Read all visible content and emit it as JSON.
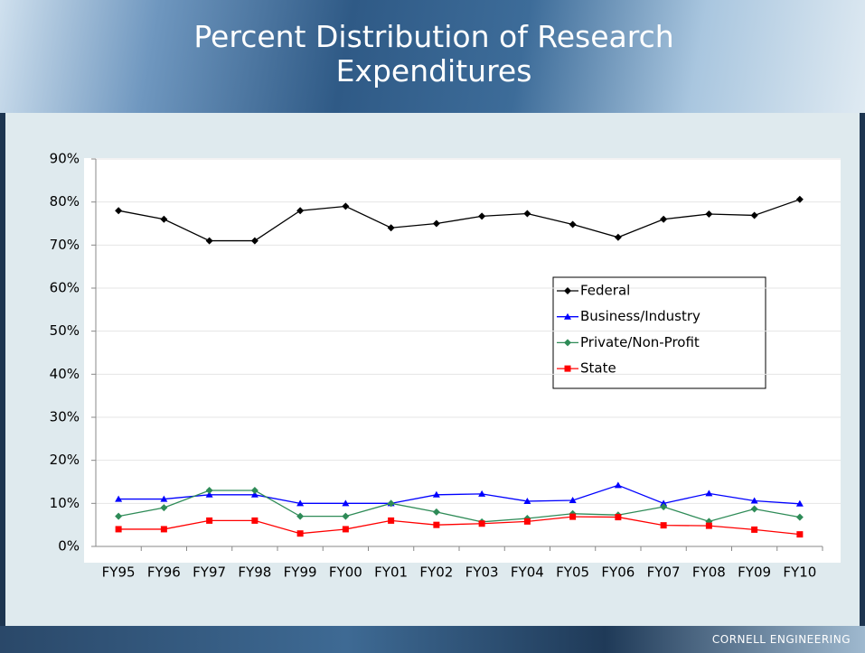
{
  "chart_data": {
    "type": "line",
    "title": "Percent Distribution of Research Expenditures",
    "categories": [
      "FY95",
      "FY96",
      "FY97",
      "FY98",
      "FY99",
      "FY00",
      "FY01",
      "FY02",
      "FY03",
      "FY04",
      "FY05",
      "FY06",
      "FY07",
      "FY08",
      "FY09",
      "FY10"
    ],
    "series": [
      {
        "name": "Federal",
        "color": "#000000",
        "marker": "diamond",
        "values": [
          78,
          76,
          71,
          71,
          78,
          79,
          74,
          75,
          76.7,
          77.3,
          74.8,
          71.8,
          76,
          77.2,
          76.9,
          80.6
        ]
      },
      {
        "name": "Business/Industry",
        "color": "#0000ff",
        "marker": "triangle",
        "values": [
          11,
          11,
          12,
          12,
          10,
          10,
          10,
          12,
          12.2,
          10.5,
          10.7,
          14.2,
          10,
          12.3,
          10.6,
          9.9
        ]
      },
      {
        "name": "Private/Non-Profit",
        "color": "#2e8b57",
        "marker": "diamond",
        "values": [
          7,
          9,
          13,
          13,
          7,
          7,
          10,
          8,
          5.7,
          6.5,
          7.6,
          7.3,
          9.2,
          5.8,
          8.7,
          6.8
        ]
      },
      {
        "name": "State",
        "color": "#ff0000",
        "marker": "square",
        "values": [
          4,
          4,
          6,
          6,
          3,
          4,
          6,
          5,
          5.3,
          5.8,
          6.9,
          6.8,
          4.9,
          4.8,
          3.9,
          2.8
        ]
      }
    ],
    "ylim": [
      0,
      90
    ],
    "yticks": [
      {
        "value": 0,
        "label": "0%"
      },
      {
        "value": 10,
        "label": "10%"
      },
      {
        "value": 20,
        "label": "20%"
      },
      {
        "value": 30,
        "label": "30%"
      },
      {
        "value": 40,
        "label": "40%"
      },
      {
        "value": 50,
        "label": "50%"
      },
      {
        "value": 60,
        "label": "60%"
      },
      {
        "value": 70,
        "label": "70%"
      },
      {
        "value": 80,
        "label": "80%"
      },
      {
        "value": 90,
        "label": "90%"
      }
    ],
    "grid": true,
    "legend": "right"
  },
  "footer": "CORNELL ENGINEERING"
}
